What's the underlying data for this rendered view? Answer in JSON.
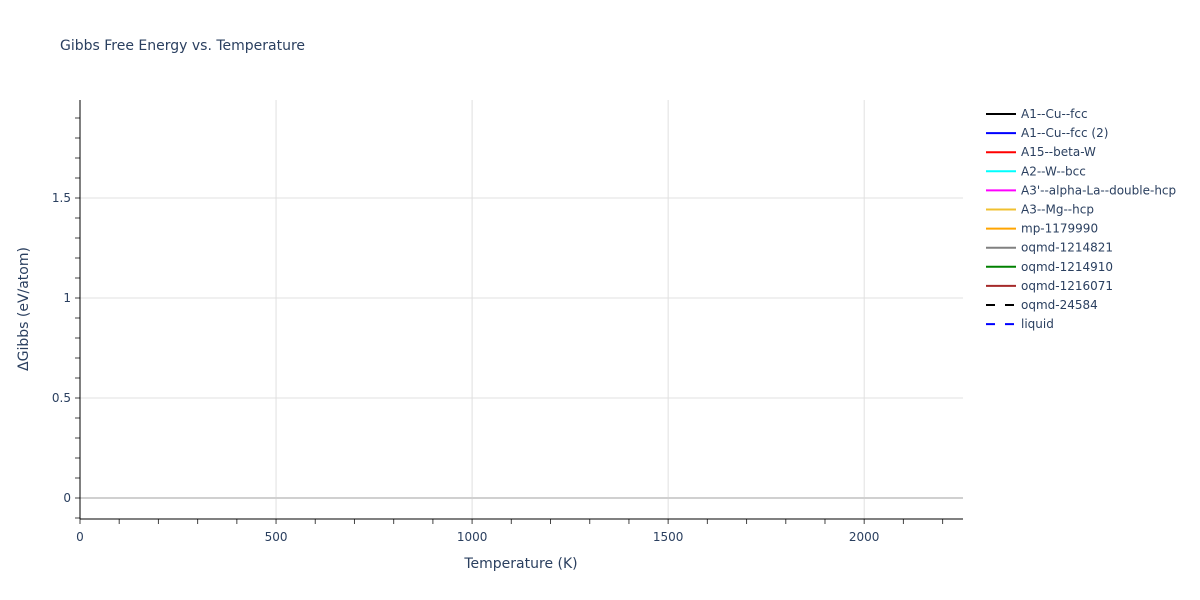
{
  "chart_data": {
    "type": "line",
    "title": "Gibbs Free Energy vs. Temperature",
    "xlabel": "Temperature (K)",
    "ylabel": "ΔGibbs (eV/atom)",
    "xlim": [
      0,
      2252
    ],
    "ylim": [
      -0.105,
      1.99
    ],
    "x_ticks": [
      0,
      500,
      1000,
      1500,
      2000
    ],
    "x_tick_labels": [
      "0",
      "500",
      "1000",
      "1500",
      "2000"
    ],
    "y_ticks": [
      0,
      0.5,
      1,
      1.5
    ],
    "y_tick_labels": [
      "0",
      "0.5",
      "1",
      "1.5"
    ],
    "x_minor_step": 100,
    "y_minor_step": 0.1,
    "grid": true,
    "legend_position": "right",
    "series": [
      {
        "name": "A1--Cu--fcc",
        "color": "#000000",
        "dash": "solid"
      },
      {
        "name": "A1--Cu--fcc (2)",
        "color": "#0000ff",
        "dash": "solid"
      },
      {
        "name": "A15--beta-W",
        "color": "#ff0000",
        "dash": "solid"
      },
      {
        "name": "A2--W--bcc",
        "color": "#00ffff",
        "dash": "solid"
      },
      {
        "name": "A3'--alpha-La--double-hcp",
        "color": "#ff00ff",
        "dash": "solid"
      },
      {
        "name": "A3--Mg--hcp",
        "color": "#f0c030",
        "dash": "solid"
      },
      {
        "name": "mp-1179990",
        "color": "#ffa500",
        "dash": "solid"
      },
      {
        "name": "oqmd-1214821",
        "color": "#808080",
        "dash": "solid"
      },
      {
        "name": "oqmd-1214910",
        "color": "#008000",
        "dash": "solid"
      },
      {
        "name": "oqmd-1216071",
        "color": "#a52a2a",
        "dash": "solid"
      },
      {
        "name": "oqmd-24584",
        "color": "#000000",
        "dash": "dash"
      },
      {
        "name": "liquid",
        "color": "#0000ff",
        "dash": "dash"
      }
    ]
  }
}
